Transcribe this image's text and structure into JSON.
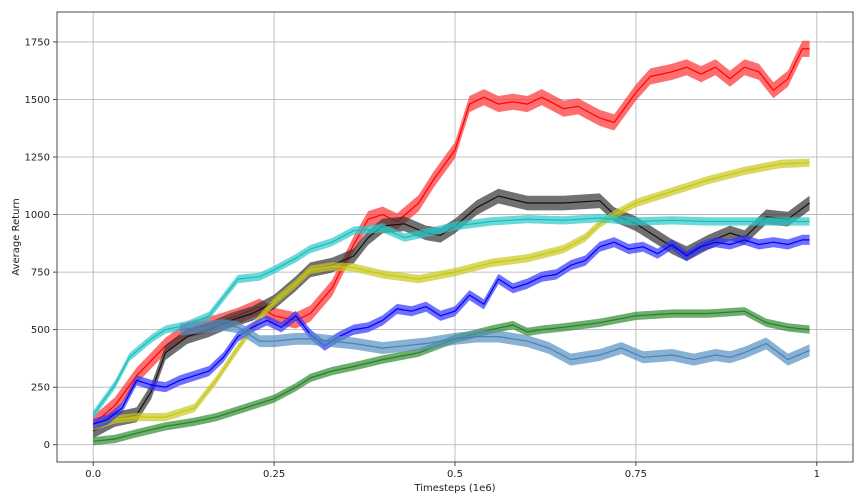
{
  "chart_data": {
    "type": "line",
    "title": "",
    "xlabel": "Timesteps (1e6)",
    "ylabel": "Average Return",
    "xlim": [
      -0.05,
      1.05
    ],
    "ylim": [
      -75,
      1880
    ],
    "xticks": [
      {
        "value": 0,
        "label": "0.0"
      },
      {
        "value": 0.25,
        "label": "0.25"
      },
      {
        "value": 0.5,
        "label": "0.5"
      },
      {
        "value": 0.75,
        "label": "0.75"
      },
      {
        "value": 1,
        "label": "1"
      }
    ],
    "yticks": [
      {
        "value": 0,
        "label": "0"
      },
      {
        "value": 250,
        "label": "250"
      },
      {
        "value": 500,
        "label": "500"
      },
      {
        "value": 750,
        "label": "750"
      },
      {
        "value": 1000,
        "label": "1000"
      },
      {
        "value": 1250,
        "label": "1250"
      },
      {
        "value": 1500,
        "label": "1500"
      },
      {
        "value": 1750,
        "label": "1750"
      }
    ],
    "grid": true,
    "legend": "none",
    "series": [
      {
        "color": "#ff0000",
        "fill": "#ff3030",
        "x": [
          0.0,
          0.03,
          0.06,
          0.1,
          0.13,
          0.17,
          0.2,
          0.23,
          0.25,
          0.28,
          0.3,
          0.33,
          0.36,
          0.38,
          0.4,
          0.42,
          0.45,
          0.47,
          0.5,
          0.52,
          0.54,
          0.56,
          0.58,
          0.6,
          0.62,
          0.65,
          0.67,
          0.7,
          0.72,
          0.75,
          0.77,
          0.8,
          0.82,
          0.84,
          0.86,
          0.88,
          0.9,
          0.92,
          0.94,
          0.96,
          0.98,
          0.99
        ],
        "y": [
          90,
          170,
          300,
          430,
          500,
          530,
          560,
          600,
          560,
          540,
          570,
          680,
          870,
          980,
          1000,
          970,
          1050,
          1150,
          1280,
          1480,
          1510,
          1480,
          1490,
          1480,
          1510,
          1460,
          1470,
          1420,
          1400,
          1530,
          1600,
          1620,
          1640,
          1610,
          1640,
          1590,
          1640,
          1620,
          1540,
          1590,
          1720,
          1720
        ],
        "band": 35
      },
      {
        "color": "#111111",
        "fill": "#333333",
        "x": [
          0.0,
          0.03,
          0.06,
          0.08,
          0.1,
          0.13,
          0.16,
          0.19,
          0.22,
          0.25,
          0.28,
          0.3,
          0.33,
          0.36,
          0.38,
          0.4,
          0.43,
          0.46,
          0.48,
          0.5,
          0.53,
          0.56,
          0.6,
          0.65,
          0.7,
          0.72,
          0.75,
          0.78,
          0.8,
          0.82,
          0.85,
          0.88,
          0.9,
          0.93,
          0.96,
          0.99
        ],
        "y": [
          60,
          110,
          130,
          230,
          400,
          470,
          500,
          540,
          570,
          620,
          700,
          760,
          780,
          820,
          900,
          950,
          960,
          920,
          910,
          950,
          1030,
          1080,
          1050,
          1050,
          1060,
          1000,
          960,
          900,
          860,
          830,
          880,
          920,
          900,
          990,
          980,
          1050
        ],
        "band": 32
      },
      {
        "color": "#c8c810",
        "fill": "#c8c820",
        "x": [
          0.0,
          0.03,
          0.06,
          0.1,
          0.14,
          0.17,
          0.2,
          0.23,
          0.25,
          0.28,
          0.3,
          0.33,
          0.36,
          0.4,
          0.45,
          0.5,
          0.55,
          0.6,
          0.65,
          0.68,
          0.7,
          0.72,
          0.75,
          0.8,
          0.85,
          0.9,
          0.95,
          0.99
        ],
        "y": [
          80,
          110,
          120,
          120,
          160,
          280,
          420,
          550,
          620,
          700,
          760,
          775,
          770,
          740,
          720,
          750,
          790,
          810,
          850,
          900,
          960,
          1000,
          1050,
          1100,
          1150,
          1190,
          1220,
          1225
        ],
        "band": 18
      },
      {
        "color": "#10c0c0",
        "fill": "#30c8c8",
        "x": [
          0.0,
          0.03,
          0.05,
          0.08,
          0.1,
          0.13,
          0.16,
          0.18,
          0.2,
          0.23,
          0.25,
          0.28,
          0.3,
          0.33,
          0.36,
          0.4,
          0.43,
          0.46,
          0.5,
          0.55,
          0.6,
          0.65,
          0.7,
          0.75,
          0.8,
          0.85,
          0.9,
          0.95,
          0.99
        ],
        "y": [
          130,
          260,
          380,
          460,
          500,
          520,
          560,
          640,
          720,
          730,
          760,
          810,
          850,
          880,
          930,
          940,
          900,
          920,
          950,
          970,
          980,
          975,
          985,
          970,
          975,
          970,
          970,
          970,
          970
        ],
        "band": 18
      },
      {
        "color": "#0000ee",
        "fill": "#3333ff",
        "x": [
          0.0,
          0.02,
          0.04,
          0.06,
          0.08,
          0.1,
          0.12,
          0.14,
          0.16,
          0.18,
          0.2,
          0.22,
          0.24,
          0.26,
          0.28,
          0.3,
          0.32,
          0.34,
          0.36,
          0.38,
          0.4,
          0.42,
          0.44,
          0.46,
          0.48,
          0.5,
          0.52,
          0.54,
          0.56,
          0.58,
          0.6,
          0.62,
          0.64,
          0.66,
          0.68,
          0.7,
          0.72,
          0.74,
          0.76,
          0.78,
          0.8,
          0.82,
          0.84,
          0.86,
          0.88,
          0.9,
          0.92,
          0.94,
          0.96,
          0.98,
          0.99
        ],
        "y": [
          90,
          110,
          160,
          280,
          260,
          250,
          280,
          300,
          320,
          380,
          470,
          510,
          540,
          510,
          560,
          480,
          430,
          470,
          500,
          510,
          540,
          590,
          580,
          600,
          560,
          580,
          650,
          610,
          720,
          680,
          700,
          730,
          740,
          780,
          800,
          860,
          880,
          850,
          860,
          830,
          870,
          820,
          860,
          880,
          870,
          890,
          870,
          880,
          870,
          890,
          890
        ],
        "band": 22
      },
      {
        "color": "#2e7a2e",
        "fill": "#2e8b2e",
        "x": [
          0.0,
          0.03,
          0.06,
          0.1,
          0.14,
          0.17,
          0.2,
          0.23,
          0.25,
          0.28,
          0.3,
          0.33,
          0.36,
          0.4,
          0.45,
          0.5,
          0.55,
          0.58,
          0.6,
          0.62,
          0.65,
          0.7,
          0.75,
          0.8,
          0.85,
          0.9,
          0.93,
          0.96,
          0.99
        ],
        "y": [
          15,
          25,
          50,
          80,
          100,
          120,
          150,
          180,
          200,
          250,
          290,
          320,
          340,
          370,
          400,
          460,
          500,
          520,
          490,
          500,
          510,
          530,
          560,
          570,
          570,
          580,
          530,
          510,
          500
        ],
        "band": 18
      },
      {
        "color": "#4a80b8",
        "fill": "#5590c0",
        "x": [
          0.12,
          0.15,
          0.18,
          0.2,
          0.23,
          0.25,
          0.28,
          0.3,
          0.33,
          0.36,
          0.4,
          0.43,
          0.46,
          0.5,
          0.53,
          0.56,
          0.6,
          0.63,
          0.66,
          0.7,
          0.73,
          0.76,
          0.8,
          0.83,
          0.86,
          0.88,
          0.9,
          0.93,
          0.96,
          0.99
        ],
        "y": [
          500,
          510,
          520,
          510,
          450,
          450,
          460,
          460,
          450,
          440,
          420,
          430,
          440,
          460,
          470,
          470,
          450,
          420,
          370,
          390,
          420,
          380,
          390,
          370,
          390,
          380,
          400,
          440,
          370,
          410
        ],
        "band": 26
      }
    ]
  }
}
